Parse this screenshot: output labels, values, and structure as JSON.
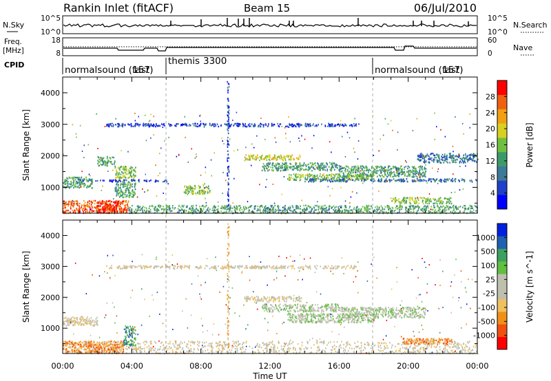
{
  "header": {
    "station": "Rankin Inlet (fitACF)",
    "beam": "Beam 15",
    "date": "06/Jul/2010"
  },
  "noise_panel": {
    "left_label": "N.Sky",
    "right_label": "N.Search",
    "left_ticks": [
      "10^5",
      "10^0"
    ],
    "right_ticks": [
      "10^5",
      "10^0"
    ]
  },
  "freq_panel": {
    "left_label_1": "Freq.",
    "left_label_2": "[MHz]",
    "right_label": "Nave",
    "left_ticks": [
      "18",
      "8"
    ],
    "right_ticks": [
      "60",
      "0"
    ]
  },
  "cpid": {
    "label": "CPID",
    "segments": [
      {
        "name": "normalsound (fast)",
        "id": "157",
        "start_hour": 0,
        "end_hour": 6
      },
      {
        "name": "themis",
        "id": "3300",
        "start_hour": 6,
        "end_hour": 18
      },
      {
        "name": "normalsound (fast)",
        "id": "157",
        "start_hour": 18,
        "end_hour": 24
      }
    ]
  },
  "chart_data": [
    {
      "type": "heatmap",
      "panel": "power",
      "ylabel": "Slant Range [km]",
      "yticks": [
        1000,
        2000,
        3000,
        4000
      ],
      "ylim": [
        180,
        4500
      ],
      "xlim_hours": [
        0,
        24
      ],
      "colorbar_label": "Power [dB]",
      "colorbar_ticks": [
        "28",
        "24",
        "20",
        "16",
        "12",
        "8",
        "4"
      ],
      "colorbar_colors": [
        "#0000ff",
        "#2040c8",
        "#3c7a98",
        "#3c9a6a",
        "#70c040",
        "#d8d020",
        "#f0a010",
        "#f06010",
        "#ff0000"
      ],
      "regions": [
        {
          "t0": 0.0,
          "t1": 3.8,
          "r0": 200,
          "r1": 600,
          "level": 7
        },
        {
          "t0": 2.0,
          "t1": 3.2,
          "r0": 200,
          "r1": 600,
          "level": 8
        },
        {
          "t0": 3.8,
          "t1": 24.0,
          "r0": 200,
          "r1": 450,
          "level": 3
        },
        {
          "t0": 0.0,
          "t1": 1.7,
          "r0": 1000,
          "r1": 1350,
          "level": 3
        },
        {
          "t0": 1.0,
          "t1": 6.0,
          "r0": 1200,
          "r1": 1260,
          "level": 1
        },
        {
          "t0": 2.0,
          "t1": 3.0,
          "r0": 1700,
          "r1": 2000,
          "level": 3
        },
        {
          "t0": 3.0,
          "t1": 4.2,
          "r0": 1300,
          "r1": 1700,
          "level": 4
        },
        {
          "t0": 3.0,
          "t1": 4.2,
          "r0": 700,
          "r1": 1200,
          "level": 3
        },
        {
          "t0": 7.0,
          "t1": 8.5,
          "r0": 800,
          "r1": 1100,
          "level": 4
        },
        {
          "t0": 10.5,
          "t1": 13.8,
          "r0": 1880,
          "r1": 2050,
          "level": 5
        },
        {
          "t0": 11.5,
          "t1": 16.0,
          "r0": 1550,
          "r1": 1800,
          "level": 3
        },
        {
          "t0": 13.0,
          "t1": 18.0,
          "r0": 1250,
          "r1": 1450,
          "level": 4
        },
        {
          "t0": 14.0,
          "t1": 24.0,
          "r0": 1200,
          "r1": 1300,
          "level": 2
        },
        {
          "t0": 16.0,
          "t1": 21.0,
          "r0": 1350,
          "r1": 1700,
          "level": 3
        },
        {
          "t0": 19.0,
          "t1": 22.5,
          "r0": 500,
          "r1": 700,
          "level": 4
        },
        {
          "t0": 20.5,
          "t1": 24.0,
          "r0": 1800,
          "r1": 2100,
          "level": 2
        },
        {
          "t0": 2.5,
          "t1": 17.0,
          "r0": 2950,
          "r1": 3050,
          "level": 1
        },
        {
          "t0": 9.5,
          "t1": 9.6,
          "r0": 200,
          "r1": 4400,
          "level": 1
        }
      ]
    },
    {
      "type": "heatmap",
      "panel": "velocity",
      "xlabel": "Time UT",
      "ylabel": "Slant Range [km]",
      "yticks": [
        1000,
        2000,
        3000,
        4000
      ],
      "ylim": [
        180,
        4500
      ],
      "xlim_hours": [
        0,
        24
      ],
      "xtick_labels": [
        "00:00",
        "04:00",
        "08:00",
        "12:00",
        "16:00",
        "20:00",
        "00:00"
      ],
      "colorbar_label": "Velocity [m s^-1]",
      "colorbar_ticks": [
        "1000",
        "500",
        "100",
        "25",
        "-25",
        "-100",
        "-500",
        "-1000"
      ],
      "colorbar_colors": [
        "#ff0000",
        "#f05010",
        "#f09018",
        "#f0c060",
        "#bfbfb0",
        "#bfbfb0",
        "#60c040",
        "#3ca060",
        "#2060b0",
        "#0020e0"
      ],
      "regions": [
        {
          "t0": 0.0,
          "t1": 24.0,
          "r0": 200,
          "r1": 600,
          "level": 4
        },
        {
          "t0": 0.0,
          "t1": 3.5,
          "r0": 200,
          "r1": 600,
          "level": 2
        },
        {
          "t0": 0.0,
          "t1": 2.0,
          "r0": 1100,
          "r1": 1400,
          "level": 4
        },
        {
          "t0": 3.5,
          "t1": 4.2,
          "r0": 450,
          "r1": 1100,
          "level": 7
        },
        {
          "t0": 10.5,
          "t1": 13.8,
          "r0": 1880,
          "r1": 2050,
          "level": 4
        },
        {
          "t0": 11.5,
          "t1": 16.0,
          "r0": 1550,
          "r1": 1800,
          "level": 5
        },
        {
          "t0": 13.0,
          "t1": 18.0,
          "r0": 1200,
          "r1": 1500,
          "level": 5
        },
        {
          "t0": 16.0,
          "t1": 21.0,
          "r0": 1350,
          "r1": 1700,
          "level": 5
        },
        {
          "t0": 19.5,
          "t1": 22.5,
          "r0": 500,
          "r1": 700,
          "level": 2
        },
        {
          "t0": 2.5,
          "t1": 17.0,
          "r0": 2950,
          "r1": 3050,
          "level": 4
        },
        {
          "t0": 9.5,
          "t1": 9.6,
          "r0": 200,
          "r1": 4400,
          "level": 3
        }
      ]
    }
  ]
}
